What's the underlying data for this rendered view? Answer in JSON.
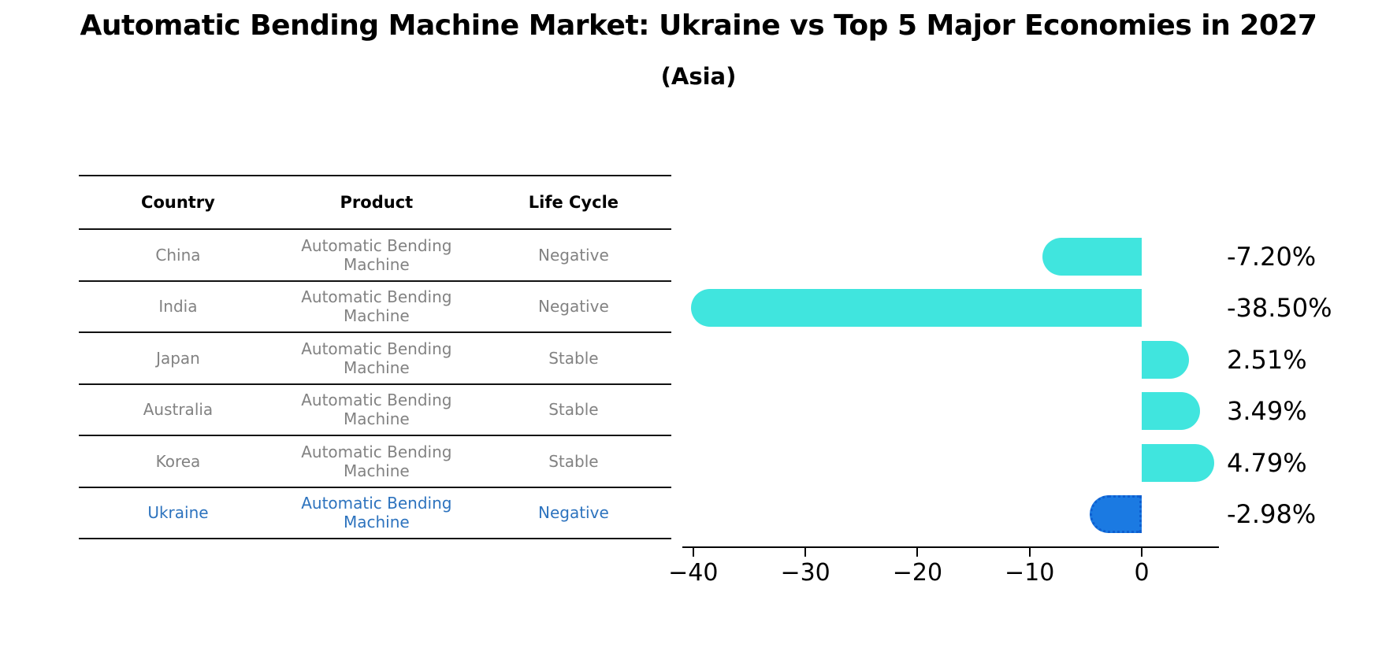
{
  "title": "Automatic Bending Machine Market: Ukraine vs Top 5 Major Economies in 2027",
  "subtitle": "(Asia)",
  "table": {
    "headers": [
      "Country",
      "Product",
      "Life Cycle"
    ],
    "rows": [
      {
        "country": "China",
        "product": "Automatic Bending Machine",
        "life_cycle": "Negative",
        "highlight": false
      },
      {
        "country": "India",
        "product": "Automatic Bending Machine",
        "life_cycle": "Negative",
        "highlight": false
      },
      {
        "country": "Japan",
        "product": "Automatic Bending Machine",
        "life_cycle": "Stable",
        "highlight": false
      },
      {
        "country": "Australia",
        "product": "Automatic Bending Machine",
        "life_cycle": "Stable",
        "highlight": false
      },
      {
        "country": "Korea",
        "product": "Automatic Bending Machine",
        "life_cycle": "Stable",
        "highlight": false
      },
      {
        "country": "Ukraine",
        "product": "Automatic Bending Machine",
        "life_cycle": "Negative",
        "highlight": true
      }
    ]
  },
  "chart_data": {
    "type": "bar",
    "orientation": "horizontal",
    "title": "Automatic Bending Machine Market: Ukraine vs Top 5 Major Economies in 2027 (Asia)",
    "categories": [
      "China",
      "India",
      "Japan",
      "Australia",
      "Korea",
      "Ukraine"
    ],
    "values": [
      -7.2,
      -38.5,
      2.51,
      3.49,
      4.79,
      -2.98
    ],
    "value_labels": [
      "-7.20%",
      "-38.50%",
      "2.51%",
      "3.49%",
      "4.79%",
      "-2.98%"
    ],
    "unit": "%",
    "xlabel": "",
    "ylabel": "",
    "xlim": [
      -41,
      6.9
    ],
    "xticks": [
      -40,
      -30,
      -20,
      -10,
      0
    ],
    "grid": false,
    "legend": false,
    "bar_color": "#40e5de",
    "highlight_color": "#1b7ae2",
    "highlight_index": 5,
    "highlight_style": "dotted-border"
  },
  "colors": {
    "background": "#ffffff",
    "table_line": "#111111",
    "row_text": "#828282",
    "highlight_text": "#2d73be",
    "axis": "#000000"
  }
}
